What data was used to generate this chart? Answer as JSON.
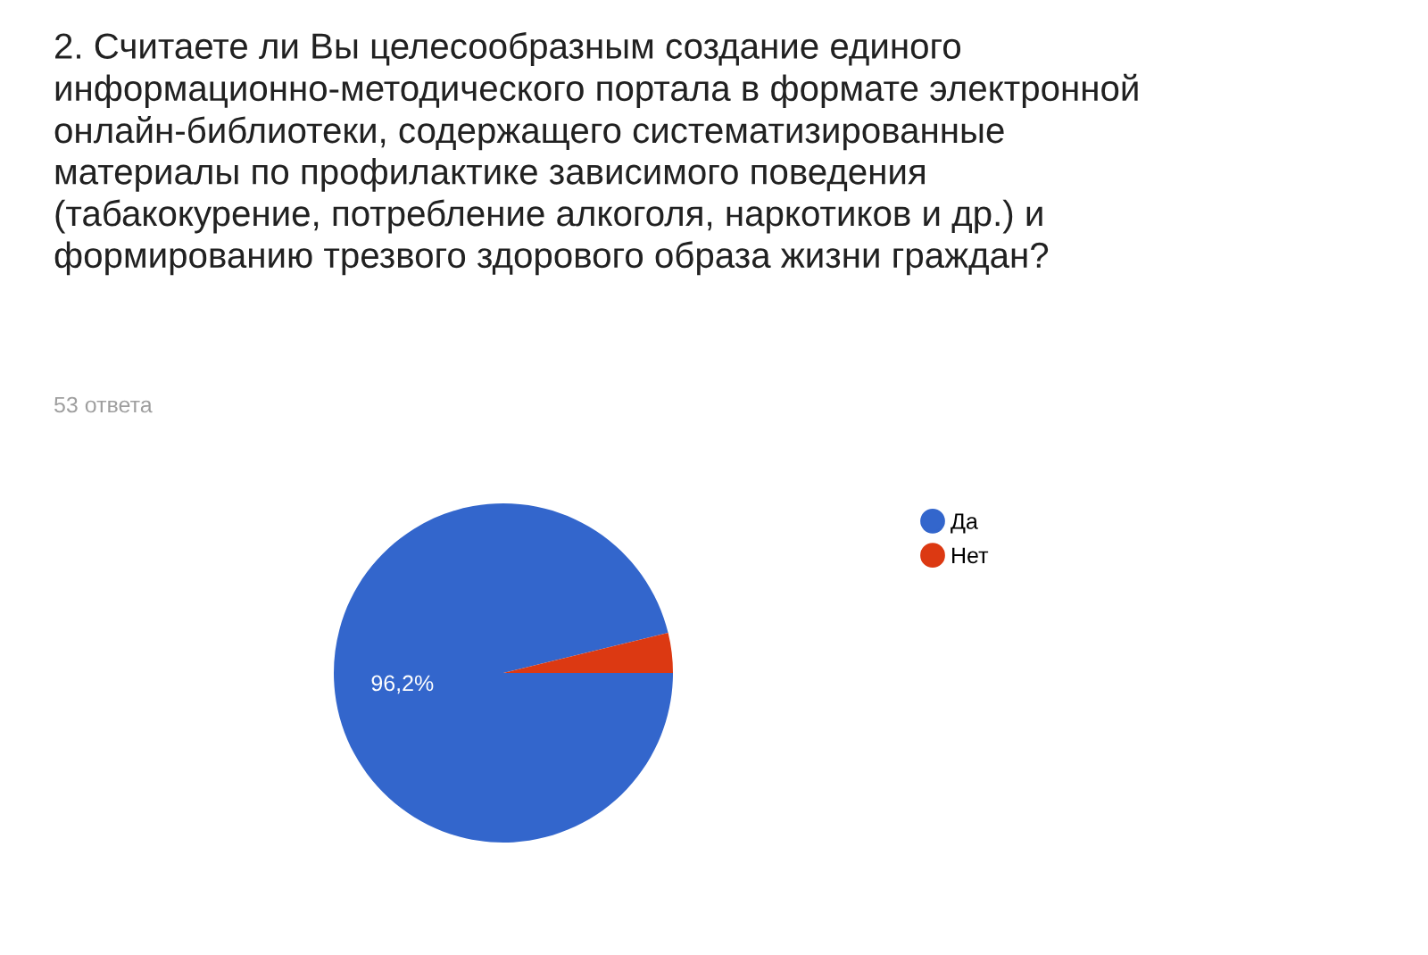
{
  "chart_data": {
    "type": "pie",
    "title": "2. Считаете ли Вы целесообразным создание единого\nинформационно-методического портала в формате электронной\nонлайн-библиотеки, содержащего систематизированные\nматериалы по профилактике зависимого поведения\n(табакокурение, потребление алкоголя, наркотиков и др.) и\nформированию трезвого здорового образа жизни граждан?",
    "subtitle": "53 ответа",
    "categories": [
      "Да",
      "Нет"
    ],
    "values": [
      96.2,
      3.8
    ],
    "colors": [
      "#3366cc",
      "#dc3912"
    ],
    "value_labels": [
      "96,2%",
      null
    ],
    "legend": "right"
  }
}
